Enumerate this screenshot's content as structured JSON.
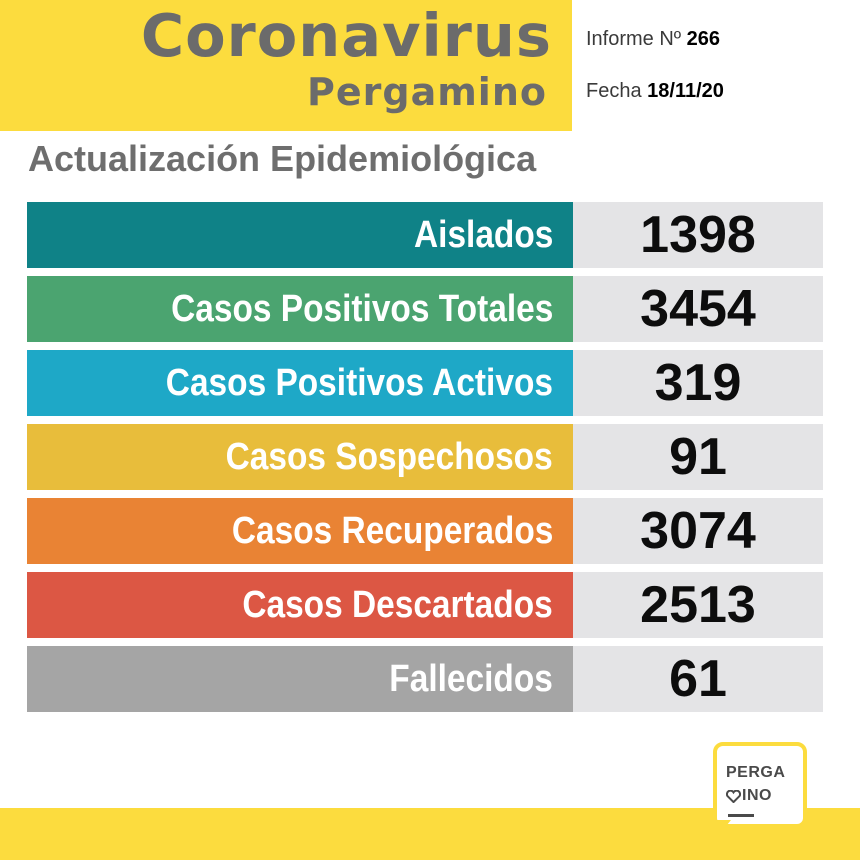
{
  "header": {
    "title": "Coronavirus",
    "subtitle": "Pergamino",
    "report_label": "Informe Nº",
    "report_number": "266",
    "date_label": "Fecha",
    "date_value": "18/11/20"
  },
  "section_title": "Actualización Epidemiológica",
  "stats": [
    {
      "label": "Aislados",
      "value": "1398",
      "color": "#0f8287"
    },
    {
      "label": "Casos Positivos Totales",
      "value": "3454",
      "color": "#4ba470"
    },
    {
      "label": "Casos Positivos Activos",
      "value": "319",
      "color": "#1ea8c7"
    },
    {
      "label": "Casos Sospechosos",
      "value": "91",
      "color": "#e8bd3b"
    },
    {
      "label": "Casos Recuperados",
      "value": "3074",
      "color": "#e98334"
    },
    {
      "label": "Casos Descartados",
      "value": "2513",
      "color": "#dc5744"
    },
    {
      "label": "Fallecidos",
      "value": "61",
      "color": "#a5a5a5"
    }
  ],
  "logo": {
    "line1": "PERGA",
    "line2": "INO",
    "icon": "heart-icon"
  },
  "colors": {
    "brand_yellow": "#fcdc3e",
    "title_gray": "#6b6b6b",
    "value_bg": "#e4e4e6"
  }
}
